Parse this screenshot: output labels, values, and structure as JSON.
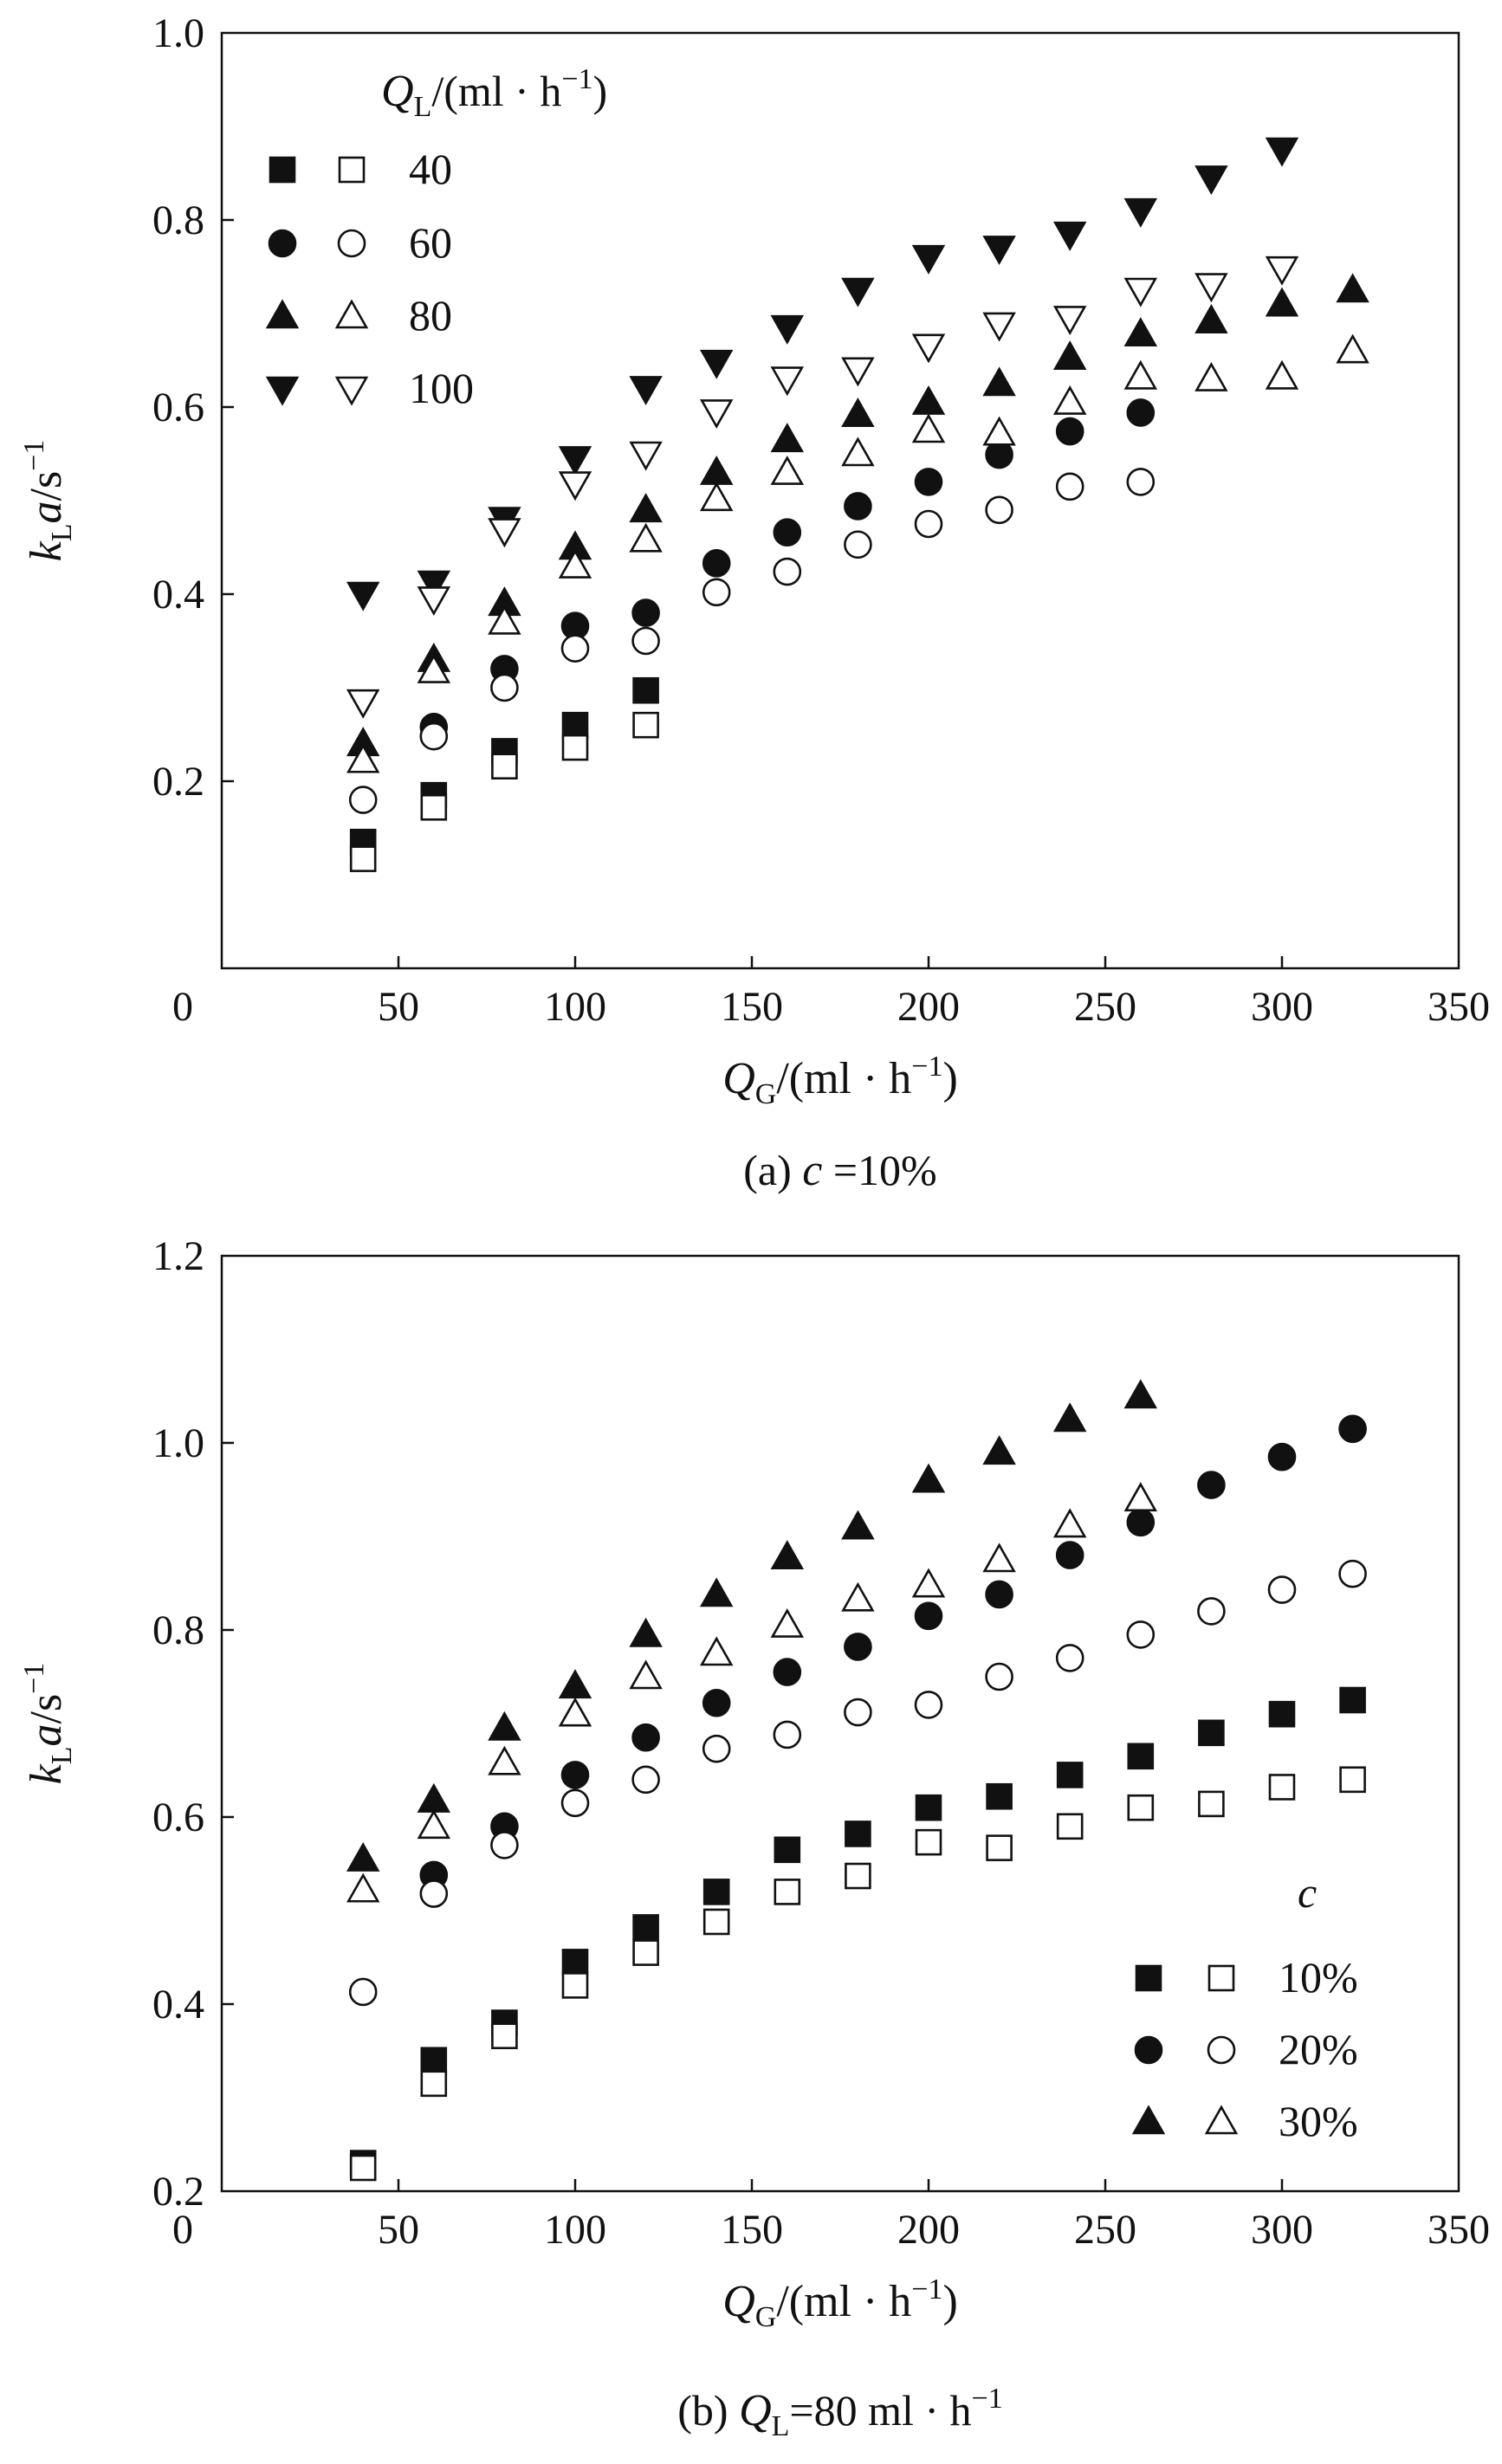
{
  "chart_data": [
    {
      "type": "scatter",
      "caption": {
        "prefix": "(a) ",
        "var": "c",
        "text": " =10%"
      },
      "xlabel": {
        "var": "Q",
        "sub": "G",
        "unit": "/(ml · h",
        "sup": "−1",
        "close": ")"
      },
      "ylabel": {
        "var1": "k",
        "sub": "L",
        "var2": "a",
        "unit": "/s",
        "sup": "−1"
      },
      "xlim": [
        0,
        350
      ],
      "ylim": [
        0.0,
        1.0
      ],
      "xticks": [
        "0",
        "50",
        "100",
        "150",
        "200",
        "250",
        "300",
        "350"
      ],
      "xtick_values": [
        0,
        50,
        100,
        150,
        200,
        250,
        300,
        350
      ],
      "yticks": [
        "0.2",
        "0.4",
        "0.6",
        "0.8",
        "1.0"
      ],
      "ytick_values": [
        0.2,
        0.4,
        0.6,
        0.8,
        1.0
      ],
      "legend": {
        "title": {
          "var": "Q",
          "sub": "L",
          "unit": "/(ml · h",
          "sup": "−1",
          "close": ")"
        },
        "position": "top-left",
        "entries": [
          "40",
          "60",
          "80",
          "100"
        ]
      },
      "series": [
        {
          "name": "40 filled",
          "marker": "square",
          "filled": true,
          "x": [
            40,
            60,
            80,
            100,
            120
          ],
          "y": [
            0.135,
            0.185,
            0.232,
            0.26,
            0.297
          ]
        },
        {
          "name": "40 open",
          "marker": "square",
          "filled": false,
          "x": [
            40,
            60,
            80,
            100,
            120
          ],
          "y": [
            0.117,
            0.172,
            0.216,
            0.236,
            0.26
          ]
        },
        {
          "name": "60 filled",
          "marker": "circle",
          "filled": true,
          "x": [
            60,
            80,
            100,
            120,
            140,
            160,
            180,
            200,
            220,
            240,
            260
          ],
          "y": [
            0.258,
            0.32,
            0.366,
            0.38,
            0.433,
            0.466,
            0.494,
            0.52,
            0.549,
            0.574,
            0.594
          ]
        },
        {
          "name": "60 open",
          "marker": "circle",
          "filled": false,
          "x": [
            40,
            60,
            80,
            100,
            120,
            140,
            160,
            180,
            200,
            220,
            240,
            260
          ],
          "y": [
            0.18,
            0.248,
            0.3,
            0.342,
            0.35,
            0.402,
            0.424,
            0.453,
            0.475,
            0.49,
            0.515,
            0.52
          ]
        },
        {
          "name": "80 filled",
          "marker": "triangle-up",
          "filled": true,
          "x": [
            40,
            60,
            80,
            100,
            120,
            140,
            160,
            180,
            200,
            220,
            240,
            260,
            280,
            300,
            320
          ],
          "y": [
            0.24,
            0.33,
            0.39,
            0.45,
            0.49,
            0.53,
            0.565,
            0.592,
            0.605,
            0.625,
            0.653,
            0.678,
            0.692,
            0.71,
            0.725
          ]
        },
        {
          "name": "80 open",
          "marker": "triangle-up",
          "filled": false,
          "x": [
            40,
            60,
            80,
            100,
            120,
            140,
            160,
            180,
            200,
            220,
            240,
            260,
            280,
            300,
            320
          ],
          "y": [
            0.222,
            0.318,
            0.37,
            0.43,
            0.458,
            0.502,
            0.53,
            0.55,
            0.575,
            0.572,
            0.605,
            0.632,
            0.63,
            0.632,
            0.66
          ]
        },
        {
          "name": "100 filled",
          "marker": "triangle-down",
          "filled": true,
          "x": [
            40,
            60,
            80,
            100,
            120,
            140,
            160,
            180,
            200,
            220,
            240,
            260,
            280,
            300
          ],
          "y": [
            0.4,
            0.412,
            0.48,
            0.545,
            0.62,
            0.648,
            0.685,
            0.725,
            0.76,
            0.77,
            0.785,
            0.81,
            0.845,
            0.875
          ]
        },
        {
          "name": "100 open",
          "marker": "triangle-down",
          "filled": false,
          "x": [
            40,
            60,
            80,
            100,
            120,
            140,
            160,
            180,
            200,
            220,
            240,
            260,
            280,
            300
          ],
          "y": [
            0.285,
            0.395,
            0.468,
            0.518,
            0.55,
            0.595,
            0.63,
            0.64,
            0.665,
            0.688,
            0.695,
            0.725,
            0.73,
            0.748
          ]
        }
      ]
    },
    {
      "type": "scatter",
      "caption": {
        "prefix": "(b) ",
        "var": "Q",
        "sub": "L",
        "text": "=80 ml · h",
        "sup": "−1"
      },
      "xlabel": {
        "var": "Q",
        "sub": "G",
        "unit": "/(ml · h",
        "sup": "−1",
        "close": ")"
      },
      "ylabel": {
        "var1": "k",
        "sub": "L",
        "var2": "a",
        "unit": "/s",
        "sup": "−1"
      },
      "xlim": [
        0,
        350
      ],
      "ylim": [
        0.2,
        1.2
      ],
      "xticks": [
        "0",
        "50",
        "100",
        "150",
        "200",
        "250",
        "300",
        "350"
      ],
      "xtick_values": [
        0,
        50,
        100,
        150,
        200,
        250,
        300,
        350
      ],
      "yticks": [
        "0.2",
        "0.4",
        "0.6",
        "0.8",
        "1.0",
        "1.2"
      ],
      "ytick_values": [
        0.2,
        0.4,
        0.6,
        0.8,
        1.0,
        1.2
      ],
      "legend": {
        "title": {
          "var": "c"
        },
        "position": "bottom-right",
        "entries": [
          "10%",
          "20%",
          "30%"
        ]
      },
      "series": [
        {
          "name": "10% filled",
          "marker": "square",
          "filled": true,
          "x": [
            40,
            60,
            80,
            100,
            120,
            140,
            160,
            180,
            200,
            220,
            240,
            260,
            280,
            300,
            320
          ],
          "y": [
            0.23,
            0.34,
            0.38,
            0.445,
            0.482,
            0.52,
            0.565,
            0.582,
            0.61,
            0.622,
            0.645,
            0.665,
            0.69,
            0.71,
            0.725
          ]
        },
        {
          "name": "10% open",
          "marker": "square",
          "filled": false,
          "x": [
            40,
            60,
            80,
            100,
            120,
            140,
            160,
            180,
            200,
            220,
            240,
            260,
            280,
            300,
            320
          ],
          "y": [
            0.225,
            0.315,
            0.366,
            0.42,
            0.455,
            0.488,
            0.52,
            0.537,
            0.573,
            0.567,
            0.59,
            0.61,
            0.614,
            0.632,
            0.64
          ]
        },
        {
          "name": "20% filled",
          "marker": "circle",
          "filled": true,
          "x": [
            60,
            80,
            100,
            120,
            140,
            160,
            180,
            200,
            220,
            240,
            260,
            280,
            300,
            320
          ],
          "y": [
            0.538,
            0.59,
            0.645,
            0.685,
            0.722,
            0.755,
            0.782,
            0.815,
            0.838,
            0.88,
            0.915,
            0.955,
            0.985,
            1.015
          ]
        },
        {
          "name": "20% open",
          "marker": "circle",
          "filled": false,
          "x": [
            40,
            60,
            80,
            100,
            120,
            140,
            160,
            180,
            200,
            220,
            240,
            260,
            280,
            300,
            320
          ],
          "y": [
            0.413,
            0.518,
            0.57,
            0.615,
            0.64,
            0.673,
            0.688,
            0.712,
            0.72,
            0.75,
            0.77,
            0.795,
            0.82,
            0.843,
            0.86
          ]
        },
        {
          "name": "30% filled",
          "marker": "triangle-up",
          "filled": true,
          "x": [
            40,
            60,
            80,
            100,
            120,
            140,
            160,
            180,
            200,
            220,
            240,
            260
          ],
          "y": [
            0.555,
            0.618,
            0.695,
            0.74,
            0.795,
            0.838,
            0.878,
            0.91,
            0.96,
            0.99,
            1.025,
            1.05
          ]
        },
        {
          "name": "30% open",
          "marker": "triangle-up",
          "filled": false,
          "x": [
            40,
            60,
            80,
            100,
            120,
            140,
            160,
            180,
            200,
            220,
            240,
            260
          ],
          "y": [
            0.522,
            0.59,
            0.658,
            0.71,
            0.75,
            0.775,
            0.805,
            0.833,
            0.848,
            0.875,
            0.912,
            0.94
          ]
        }
      ]
    }
  ]
}
